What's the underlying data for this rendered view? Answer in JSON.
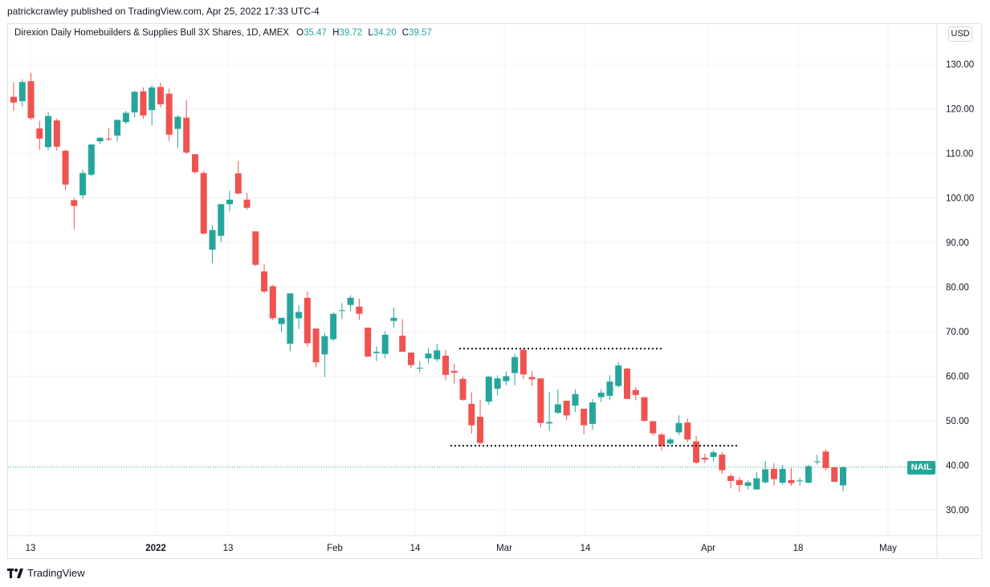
{
  "header": {
    "text": "patrickcrawley published on TradingView.com, Apr 25, 2022 17:33 UTC-4"
  },
  "legend": {
    "symbol": "Direxion Daily Homebuilders & Supplies Bull 3X Shares, 1D, AMEX",
    "open_label": "O",
    "open": "35.47",
    "high_label": "H",
    "high": "39.72",
    "low_label": "L",
    "low": "34.20",
    "close_label": "C",
    "close": "39.57"
  },
  "currency_button": "USD",
  "ticker_label": "NAIL",
  "footer": {
    "brand": "TradingView"
  },
  "colors": {
    "up": "#26a69a",
    "down": "#ef5350",
    "grid": "#f0f3fa",
    "axis_text": "#131722"
  },
  "chart_data": {
    "type": "candlestick",
    "ylim": [
      22,
      140
    ],
    "grid": true,
    "last_price": 39.57,
    "y_ticks": [
      "130.00",
      "120.00",
      "110.00",
      "100.00",
      "90.00",
      "80.00",
      "70.00",
      "60.00",
      "50.00",
      "40.00",
      "30.00"
    ],
    "x_ticks": [
      {
        "label": "13",
        "bold": false
      },
      {
        "label": "2022",
        "bold": true
      },
      {
        "label": "13",
        "bold": false
      },
      {
        "label": "Feb",
        "bold": false
      },
      {
        "label": "14",
        "bold": false
      },
      {
        "label": "Mar",
        "bold": false
      },
      {
        "label": "14",
        "bold": false
      },
      {
        "label": "Apr",
        "bold": false
      },
      {
        "label": "18",
        "bold": false
      },
      {
        "label": "May",
        "bold": false
      }
    ],
    "candles": [
      [
        122.7,
        126.0,
        119.5,
        121.4
      ],
      [
        121.7,
        126.6,
        120.5,
        126.0
      ],
      [
        126.2,
        128.1,
        117.5,
        117.9
      ],
      [
        115.6,
        117.3,
        110.8,
        113.3
      ],
      [
        111.4,
        119.3,
        110.6,
        118.4
      ],
      [
        117.4,
        117.8,
        110.6,
        111.5
      ],
      [
        110.6,
        110.8,
        101.8,
        103.0
      ],
      [
        99.5,
        100.0,
        93.0,
        98.2
      ],
      [
        100.6,
        106.3,
        99.8,
        105.6
      ],
      [
        105.2,
        112.1,
        104.9,
        112.0
      ],
      [
        112.7,
        113.6,
        112.1,
        113.5
      ],
      [
        113.3,
        115.7,
        112.8,
        113.2
      ],
      [
        114.0,
        117.6,
        112.7,
        117.5
      ],
      [
        117.0,
        119.5,
        116.6,
        119.1
      ],
      [
        119.2,
        124.1,
        118.1,
        123.8
      ],
      [
        123.9,
        124.8,
        117.8,
        118.5
      ],
      [
        119.7,
        125.3,
        116.3,
        124.8
      ],
      [
        124.9,
        125.9,
        120.3,
        121.0
      ],
      [
        123.4,
        124.5,
        112.8,
        114.2
      ],
      [
        115.5,
        118.6,
        111.3,
        118.2
      ],
      [
        118.0,
        122.0,
        109.8,
        110.2
      ],
      [
        109.8,
        109.8,
        105.4,
        105.8
      ],
      [
        105.6,
        106.1,
        91.8,
        92.0
      ],
      [
        88.4,
        93.9,
        85.4,
        92.8
      ],
      [
        91.5,
        98.6,
        90.1,
        98.6
      ],
      [
        98.6,
        101.6,
        97.0,
        99.6
      ],
      [
        105.5,
        108.3,
        100.8,
        101.0
      ],
      [
        99.6,
        101.1,
        97.4,
        97.8
      ],
      [
        92.5,
        92.5,
        84.7,
        85.0
      ],
      [
        83.5,
        85.1,
        78.6,
        79.0
      ],
      [
        80.2,
        80.5,
        72.6,
        73.0
      ],
      [
        71.7,
        73.1,
        69.9,
        73.1
      ],
      [
        67.3,
        78.6,
        65.6,
        78.6
      ],
      [
        73.0,
        75.9,
        70.6,
        74.4
      ],
      [
        77.6,
        79.0,
        66.6,
        67.4
      ],
      [
        70.7,
        70.7,
        62.0,
        63.1
      ],
      [
        64.9,
        69.8,
        59.8,
        69.0
      ],
      [
        68.3,
        74.3,
        67.9,
        74.0
      ],
      [
        74.7,
        76.4,
        72.8,
        74.8
      ],
      [
        76.0,
        78.2,
        74.6,
        77.6
      ],
      [
        75.6,
        77.4,
        72.6,
        74.0
      ],
      [
        70.9,
        70.9,
        64.3,
        64.4
      ],
      [
        65.2,
        66.7,
        63.4,
        65.5
      ],
      [
        65.0,
        70.1,
        64.0,
        69.3
      ],
      [
        72.4,
        75.4,
        70.9,
        73.1
      ],
      [
        69.1,
        72.8,
        66.6,
        65.5
      ],
      [
        65.3,
        65.3,
        61.8,
        62.5
      ],
      [
        61.8,
        63.4,
        60.9,
        61.9
      ],
      [
        64.0,
        66.3,
        62.9,
        65.1
      ],
      [
        63.8,
        67.3,
        63.2,
        65.8
      ],
      [
        64.6,
        65.9,
        59.1,
        60.3
      ],
      [
        61.2,
        62.8,
        58.3,
        60.8
      ],
      [
        59.4,
        59.9,
        54.5,
        54.7
      ],
      [
        53.8,
        56.4,
        47.1,
        49.0
      ],
      [
        50.9,
        54.7,
        44.7,
        45.0
      ],
      [
        54.3,
        60.0,
        53.6,
        59.9
      ],
      [
        57.2,
        60.2,
        55.7,
        59.5
      ],
      [
        58.9,
        61.0,
        58.0,
        60.0
      ],
      [
        60.7,
        65.0,
        57.9,
        64.3
      ],
      [
        65.9,
        66.2,
        59.4,
        60.4
      ],
      [
        59.8,
        61.2,
        57.8,
        59.3
      ],
      [
        59.5,
        59.5,
        48.5,
        49.5
      ],
      [
        49.4,
        56.5,
        47.7,
        49.7
      ],
      [
        51.8,
        57.1,
        51.5,
        53.7
      ],
      [
        54.5,
        54.5,
        50.1,
        51.2
      ],
      [
        53.4,
        57.0,
        52.0,
        56.0
      ],
      [
        52.7,
        52.7,
        47.0,
        49.0
      ],
      [
        49.3,
        54.9,
        48.0,
        54.1
      ],
      [
        55.3,
        57.1,
        54.2,
        56.3
      ],
      [
        55.6,
        60.2,
        54.6,
        58.8
      ],
      [
        57.8,
        63.1,
        57.5,
        62.4
      ],
      [
        61.7,
        61.9,
        54.9,
        54.9
      ],
      [
        56.9,
        57.6,
        54.6,
        55.8
      ],
      [
        55.3,
        55.3,
        49.8,
        50.0
      ],
      [
        49.9,
        50.0,
        46.7,
        47.2
      ],
      [
        46.9,
        47.3,
        43.3,
        44.4
      ],
      [
        44.9,
        46.3,
        44.5,
        45.8
      ],
      [
        47.4,
        51.2,
        46.8,
        49.5
      ],
      [
        49.6,
        50.5,
        45.2,
        45.8
      ],
      [
        45.4,
        46.6,
        40.3,
        40.6
      ],
      [
        41.7,
        42.6,
        40.5,
        41.3
      ],
      [
        41.9,
        43.4,
        40.9,
        42.9
      ],
      [
        42.4,
        43.0,
        38.1,
        38.9
      ],
      [
        37.6,
        38.1,
        34.8,
        36.5
      ],
      [
        36.7,
        37.3,
        34.0,
        35.6
      ],
      [
        35.4,
        36.6,
        34.6,
        36.2
      ],
      [
        34.6,
        38.5,
        34.5,
        37.1
      ],
      [
        36.2,
        41.0,
        35.9,
        39.1
      ],
      [
        39.2,
        40.5,
        35.5,
        36.9
      ],
      [
        36.1,
        40.1,
        35.6,
        39.2
      ],
      [
        36.7,
        39.4,
        35.4,
        36.0
      ],
      [
        36.5,
        37.2,
        35.4,
        36.6
      ],
      [
        36.1,
        40.1,
        36.0,
        39.8
      ],
      [
        40.7,
        42.4,
        40.2,
        40.9
      ],
      [
        43.1,
        43.6,
        38.9,
        39.4
      ],
      [
        39.6,
        39.6,
        36.4,
        36.3
      ],
      [
        35.5,
        39.7,
        34.2,
        39.6
      ]
    ],
    "annotations": [
      {
        "type": "horizontal-dotted-segment",
        "y": 66.2
      },
      {
        "type": "horizontal-dotted-segment",
        "y": 44.4
      }
    ]
  }
}
